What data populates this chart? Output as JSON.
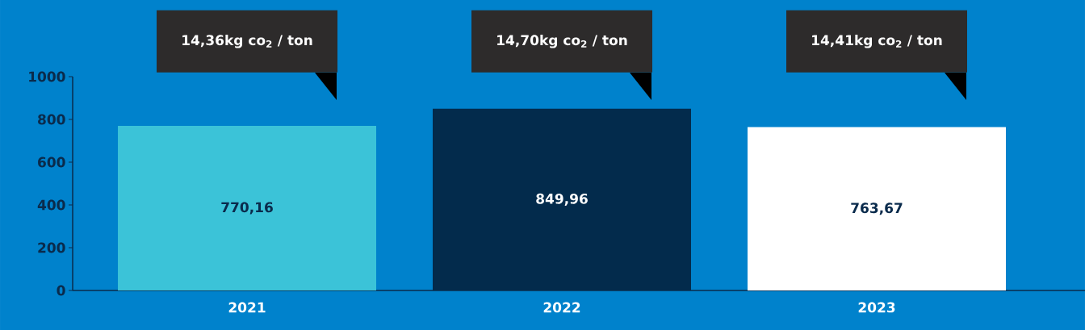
{
  "chart_data": {
    "type": "bar",
    "categories": [
      "2021",
      "2022",
      "2023"
    ],
    "values": [
      770.16,
      849.96,
      763.67
    ],
    "colors": [
      "#3bc3d8",
      "#032b4c",
      "#ffffff"
    ],
    "value_labels": [
      "770,16",
      "849,96",
      "763,67"
    ],
    "annotations": [
      "14,36kg co$_{2}$ / ton",
      "14,70kg co$_{2}$ / ton",
      "14,41kg co$_{2}$ / ton"
    ],
    "ylim": [
      0,
      1000
    ],
    "yticks": [
      0,
      200,
      400,
      600,
      800,
      1000
    ],
    "grid": false
  }
}
